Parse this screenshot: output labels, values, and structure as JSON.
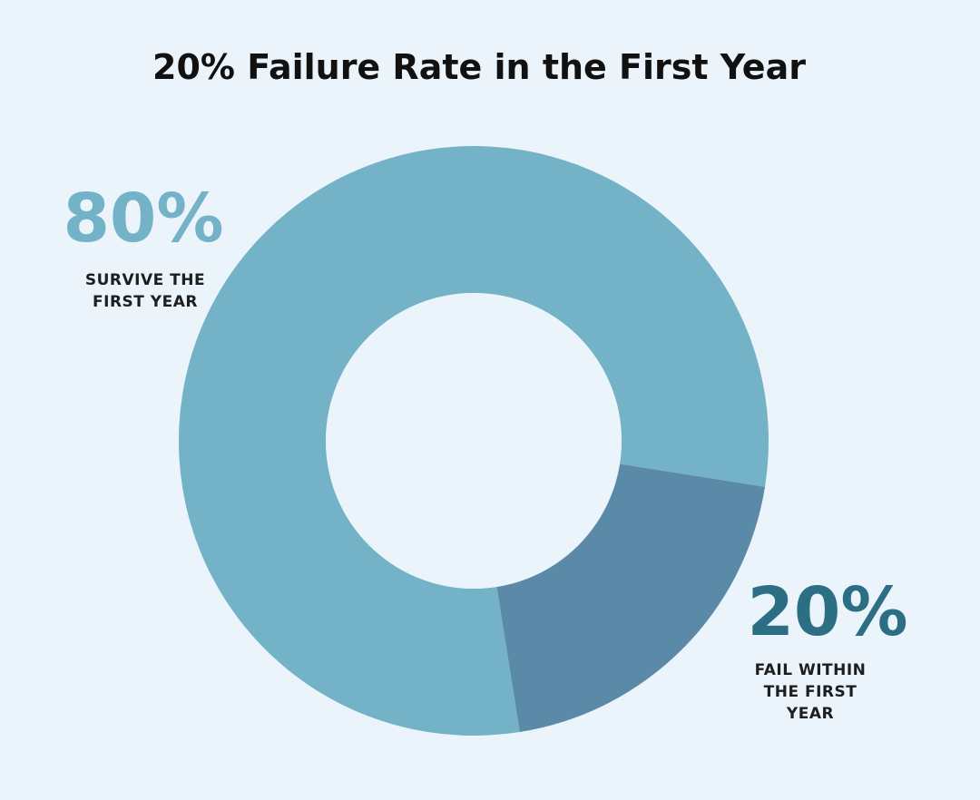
{
  "chart_data": {
    "type": "pie",
    "title": "20% Failure Rate in the First Year",
    "slices": [
      {
        "value": 80,
        "value_label": "80%",
        "label_lines": [
          "SURVIVE THE",
          "FIRST YEAR"
        ],
        "color": "#73b2c7"
      },
      {
        "value": 20,
        "value_label": "20%",
        "label_lines": [
          "FAIL WITHIN",
          "THE FIRST",
          "YEAR"
        ],
        "color": "#5b89a8"
      }
    ],
    "label_colors": {
      "survive": "#73b2c7",
      "fail": "#2c6e84"
    },
    "background": "#eaf4fa"
  }
}
